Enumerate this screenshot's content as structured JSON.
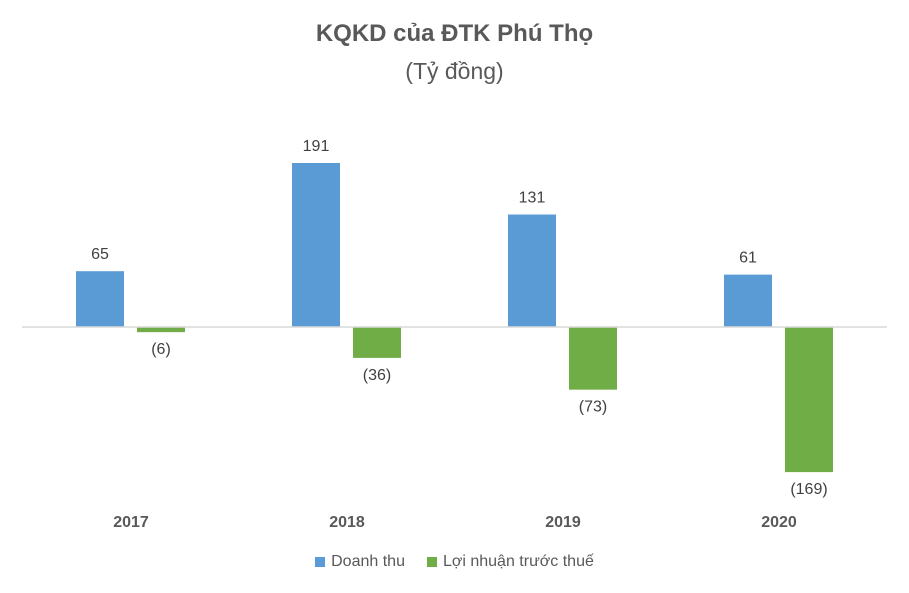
{
  "chart_data": {
    "type": "bar",
    "title": "KQKD của ĐTK Phú Thọ",
    "subtitle": "(Tỷ đồng)",
    "categories": [
      "2017",
      "2018",
      "2019",
      "2020"
    ],
    "series": [
      {
        "name": "Doanh thu",
        "values": [
          65,
          191,
          131,
          61
        ],
        "labels": [
          "65",
          "191",
          "131",
          "61"
        ],
        "color": "#5B9BD5"
      },
      {
        "name": "Lợi nhuận trước thuế",
        "values": [
          -6,
          -36,
          -73,
          -169
        ],
        "labels": [
          "(6)",
          "(36)",
          "(73)",
          "(169)"
        ],
        "color": "#70AD47"
      }
    ],
    "ylim": [
      -169,
      191
    ],
    "grid": false,
    "legend": "bottom"
  }
}
